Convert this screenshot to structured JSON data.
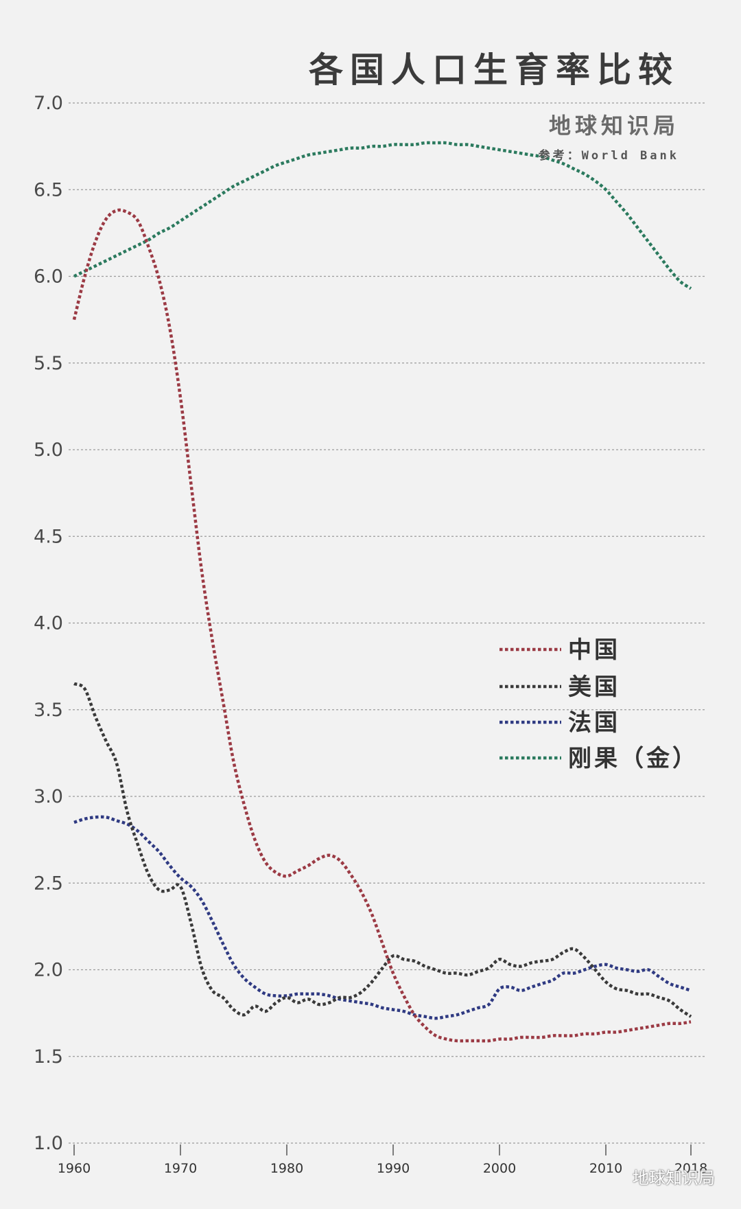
{
  "header": {
    "title": "各国人口生育率比较",
    "brand": "地球知识局",
    "source": "参考：World Bank",
    "watermark": "地球知识局"
  },
  "chart_data": {
    "type": "line",
    "title": "各国人口生育率比较",
    "xlabel": "",
    "ylabel": "",
    "xlim": [
      1960,
      2018
    ],
    "ylim": [
      1.0,
      7.0
    ],
    "yticks": [
      "1.0",
      "1.5",
      "2.0",
      "2.5",
      "3.0",
      "3.5",
      "4.0",
      "4.5",
      "5.0",
      "5.5",
      "6.0",
      "6.5",
      "7.0"
    ],
    "xticks": [
      "1960",
      "1970",
      "1980",
      "1990",
      "2000",
      "2010",
      "2018"
    ],
    "grid": true,
    "legend_position": "right-middle",
    "x": [
      1960,
      1961,
      1962,
      1963,
      1964,
      1965,
      1966,
      1967,
      1968,
      1969,
      1970,
      1971,
      1972,
      1973,
      1974,
      1975,
      1976,
      1977,
      1978,
      1979,
      1980,
      1981,
      1982,
      1983,
      1984,
      1985,
      1986,
      1987,
      1988,
      1989,
      1990,
      1991,
      1992,
      1993,
      1994,
      1995,
      1996,
      1997,
      1998,
      1999,
      2000,
      2001,
      2002,
      2003,
      2004,
      2005,
      2006,
      2007,
      2008,
      2009,
      2010,
      2011,
      2012,
      2013,
      2014,
      2015,
      2016,
      2017,
      2018
    ],
    "series": [
      {
        "name": "中国",
        "color": "#9b3a44",
        "values": [
          5.75,
          6.0,
          6.2,
          6.33,
          6.38,
          6.37,
          6.32,
          6.17,
          5.98,
          5.7,
          5.3,
          4.8,
          4.3,
          3.9,
          3.55,
          3.2,
          2.95,
          2.75,
          2.62,
          2.56,
          2.54,
          2.57,
          2.6,
          2.64,
          2.66,
          2.63,
          2.55,
          2.45,
          2.32,
          2.15,
          1.98,
          1.85,
          1.74,
          1.67,
          1.62,
          1.6,
          1.59,
          1.59,
          1.59,
          1.59,
          1.6,
          1.6,
          1.61,
          1.61,
          1.61,
          1.62,
          1.62,
          1.62,
          1.63,
          1.63,
          1.64,
          1.64,
          1.65,
          1.66,
          1.67,
          1.68,
          1.69,
          1.69,
          1.7
        ]
      },
      {
        "name": "美国",
        "color": "#3a3a3a",
        "values": [
          3.65,
          3.62,
          3.46,
          3.32,
          3.19,
          2.91,
          2.72,
          2.55,
          2.46,
          2.46,
          2.48,
          2.27,
          2.01,
          1.88,
          1.84,
          1.77,
          1.74,
          1.79,
          1.76,
          1.81,
          1.84,
          1.81,
          1.83,
          1.8,
          1.81,
          1.84,
          1.84,
          1.87,
          1.93,
          2.01,
          2.08,
          2.06,
          2.05,
          2.02,
          2.0,
          1.98,
          1.98,
          1.97,
          1.99,
          2.01,
          2.06,
          2.03,
          2.02,
          2.04,
          2.05,
          2.06,
          2.1,
          2.12,
          2.07,
          2.0,
          1.93,
          1.89,
          1.88,
          1.86,
          1.86,
          1.84,
          1.82,
          1.77,
          1.73
        ]
      },
      {
        "name": "法国",
        "color": "#2f3a82",
        "values": [
          2.85,
          2.87,
          2.88,
          2.88,
          2.86,
          2.84,
          2.8,
          2.74,
          2.68,
          2.6,
          2.53,
          2.48,
          2.4,
          2.28,
          2.15,
          2.03,
          1.95,
          1.9,
          1.86,
          1.85,
          1.85,
          1.86,
          1.86,
          1.86,
          1.85,
          1.83,
          1.82,
          1.81,
          1.8,
          1.78,
          1.77,
          1.76,
          1.74,
          1.73,
          1.72,
          1.73,
          1.74,
          1.76,
          1.78,
          1.8,
          1.89,
          1.9,
          1.88,
          1.9,
          1.92,
          1.94,
          1.98,
          1.98,
          2.0,
          2.02,
          2.03,
          2.01,
          2.0,
          1.99,
          2.0,
          1.96,
          1.92,
          1.9,
          1.88
        ]
      },
      {
        "name": "刚果（金）",
        "color": "#2b7a5e",
        "values": [
          6.0,
          6.03,
          6.06,
          6.09,
          6.12,
          6.15,
          6.18,
          6.21,
          6.25,
          6.28,
          6.32,
          6.36,
          6.4,
          6.44,
          6.48,
          6.52,
          6.55,
          6.58,
          6.61,
          6.64,
          6.66,
          6.68,
          6.7,
          6.71,
          6.72,
          6.73,
          6.74,
          6.74,
          6.75,
          6.75,
          6.76,
          6.76,
          6.76,
          6.77,
          6.77,
          6.77,
          6.76,
          6.76,
          6.75,
          6.74,
          6.73,
          6.72,
          6.71,
          6.7,
          6.69,
          6.67,
          6.65,
          6.62,
          6.59,
          6.55,
          6.5,
          6.43,
          6.36,
          6.28,
          6.2,
          6.12,
          6.04,
          5.97,
          5.93
        ]
      }
    ]
  }
}
